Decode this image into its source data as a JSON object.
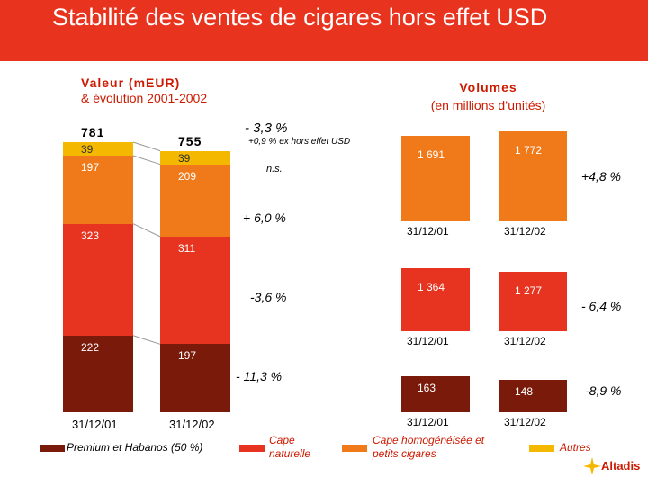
{
  "title": "Stabilité des ventes de cigares hors effet USD",
  "left_subtitle": {
    "line1": "Valeur (mEUR)",
    "line2": "& évolution 2001-2002"
  },
  "right_subtitle": {
    "line1": "Volumes",
    "line2": "(en millions d’unités)"
  },
  "colors": {
    "header": "#e8341e",
    "premium": "#7a1a0a",
    "naturelle": "#e63420",
    "homogeneisee": "#f07a1a",
    "autres": "#f4b800"
  },
  "chart_data": [
    {
      "type": "bar",
      "stacked": true,
      "title": "Valeur (mEUR) & évolution 2001-2002",
      "categories": [
        "31/12/01",
        "31/12/02"
      ],
      "totals": [
        "781",
        "755"
      ],
      "series": [
        {
          "name": "Premium et Habanos (50 %)",
          "values": [
            222,
            197
          ],
          "labels": [
            "222",
            "197"
          ],
          "evolution": "- 11,3 %"
        },
        {
          "name": "Cape naturelle",
          "values": [
            323,
            311
          ],
          "labels": [
            "323",
            "311"
          ],
          "evolution": "-3,6 %"
        },
        {
          "name": "Cape homogénéisée et petits cigares",
          "values": [
            197,
            209
          ],
          "labels": [
            "197",
            "209"
          ],
          "evolution": "+ 6,0 %"
        },
        {
          "name": "Autres",
          "values": [
            39,
            39
          ],
          "labels": [
            "39",
            "39"
          ],
          "evolution": "n.s."
        }
      ],
      "total_evolution": "- 3,3 %",
      "total_evolution_note": "+0,9 % ex hors effet USD"
    },
    {
      "type": "bar",
      "title": "Volumes (en millions d’unités)",
      "groups": [
        {
          "name": "Cape homogénéisée et petits cigares",
          "categories": [
            "31/12/01",
            "31/12/02"
          ],
          "values": [
            1691,
            1772
          ],
          "labels": [
            "1 691",
            "1 772"
          ],
          "evolution": "+4,8 %"
        },
        {
          "name": "Cape naturelle",
          "categories": [
            "31/12/01",
            "31/12/02"
          ],
          "values": [
            1364,
            1277
          ],
          "labels": [
            "1 364",
            "1 277"
          ],
          "evolution": "- 6,4 %"
        },
        {
          "name": "Premium et Habanos",
          "categories": [
            "31/12/01",
            "31/12/02"
          ],
          "values": [
            163,
            148
          ],
          "labels": [
            "163",
            "148"
          ],
          "evolution": "-8,9 %"
        }
      ]
    }
  ],
  "legend": [
    {
      "label": "Premium et Habanos (50 %)"
    },
    {
      "label": "Cape naturelle"
    },
    {
      "label": "Cape homogénéisée et petits cigares"
    },
    {
      "label": "Autres"
    }
  ],
  "logo": "Altadis"
}
